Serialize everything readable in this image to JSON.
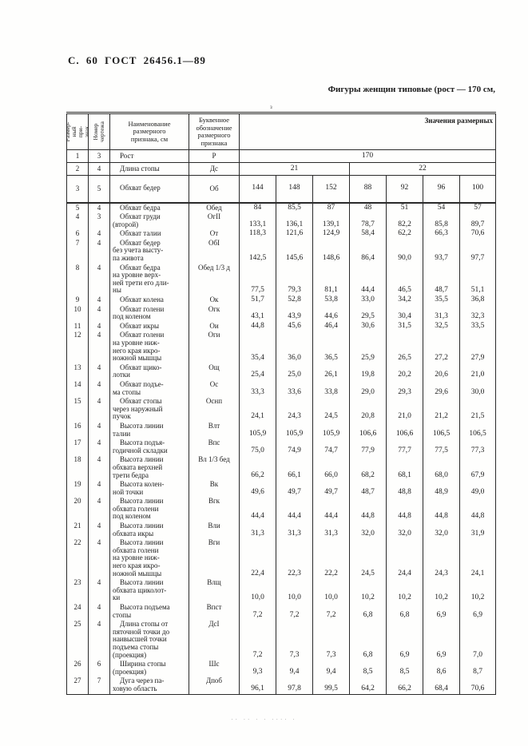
{
  "page": {
    "header": "С. 60 ГОСТ 26456.1—89",
    "caption": "Фигуры женщин типовые (рост — 170 см,",
    "top_artifact": "з",
    "footer_artifact": "·· ·· · · ···· ·"
  },
  "table": {
    "headers": {
      "col1": "Размер-\nный при-\nзнак",
      "col2": "Номер\nчертежа",
      "col3": "Наименование\nразмерного\nпризнака, см",
      "col4": "Буквенное\nобозначение\nразмерного\nпризнака",
      "values": "Значения размерных"
    },
    "group_rows": [
      {
        "c1": "1",
        "c2": "3",
        "name": "Рост",
        "letter": "Р",
        "spans": [
          {
            "label": "170",
            "cols": 7
          }
        ]
      },
      {
        "c1": "2",
        "c2": "4",
        "name": "Длина стопы",
        "letter": "Дс",
        "spans": [
          {
            "label": "21",
            "cols": 3
          },
          {
            "label": "22",
            "cols": 4
          }
        ]
      },
      {
        "c1": "3",
        "c2": "5",
        "name": "Обхват бедер",
        "letter": "Об",
        "spans": [
          {
            "label": "144",
            "cols": 1
          },
          {
            "label": "148",
            "cols": 1
          },
          {
            "label": "152",
            "cols": 1
          },
          {
            "label": "88",
            "cols": 1
          },
          {
            "label": "92",
            "cols": 1
          },
          {
            "label": "96",
            "cols": 1
          },
          {
            "label": "100",
            "cols": 1
          }
        ]
      }
    ],
    "rows": [
      {
        "c1": "5",
        "c2": "4",
        "name": "Обхват бедра",
        "letter": "Обед",
        "values": [
          "84",
          "85,5",
          "87",
          "48",
          "51",
          "54",
          "57"
        ]
      },
      {
        "c1": "4",
        "c2": "3",
        "name": "Обхват груди\n(второй)",
        "letter": "ОгII",
        "values": [
          "133,1",
          "136,1",
          "139,1",
          "78,7",
          "82,2",
          "85,8",
          "89,7"
        ]
      },
      {
        "c1": "6",
        "c2": "4",
        "name": "Обхват талии",
        "letter": "От",
        "values": [
          "118,3",
          "121,6",
          "124,9",
          "58,4",
          "62,2",
          "66,3",
          "70,6"
        ]
      },
      {
        "c1": "7",
        "c2": "4",
        "name": "Обхват бедер\nбез учета высту-\nпа живота",
        "letter": "ОбI",
        "values": [
          "142,5",
          "145,6",
          "148,6",
          "86,4",
          "90,0",
          "93,7",
          "97,7"
        ]
      },
      {
        "c1": "8",
        "c2": "4",
        "name": "Обхват бедра\nна уровне верх-\nней трети его дли-\nны",
        "letter": "Обед 1/3 д",
        "values": [
          "77,5",
          "79,3",
          "81,1",
          "44,4",
          "46,5",
          "48,7",
          "51,1"
        ]
      },
      {
        "c1": "9",
        "c2": "4",
        "name": "Обхват колена",
        "letter": "Ок",
        "values": [
          "51,7",
          "52,8",
          "53,8",
          "33,0",
          "34,2",
          "35,5",
          "36,8"
        ]
      },
      {
        "c1": "10",
        "c2": "4",
        "name": "Обхват голени\nпод коленом",
        "letter": "Огк",
        "values": [
          "43,1",
          "43,9",
          "44,6",
          "29,5",
          "30,4",
          "31,3",
          "32,3"
        ]
      },
      {
        "c1": "11",
        "c2": "4",
        "name": "Обхват икры",
        "letter": "Ои",
        "values": [
          "44,8",
          "45,6",
          "46,4",
          "30,6",
          "31,5",
          "32,5",
          "33,5"
        ]
      },
      {
        "c1": "12",
        "c2": "4",
        "name": "Обхват голени\nна уровне ниж-\nнего края икро-\nножной мышцы",
        "letter": "Оги",
        "values": [
          "35,4",
          "36,0",
          "36,5",
          "25,9",
          "26,5",
          "27,2",
          "27,9"
        ]
      },
      {
        "c1": "13",
        "c2": "4",
        "name": "Обхват щико-\nлотки",
        "letter": "Ощ",
        "values": [
          "25,4",
          "25,0",
          "26,1",
          "19,8",
          "20,2",
          "20,6",
          "21,0"
        ]
      },
      {
        "c1": "14",
        "c2": "4",
        "name": "Обхват подъе-\nма стопы",
        "letter": "Ос",
        "values": [
          "33,3",
          "33,6",
          "33,8",
          "29,0",
          "29,3",
          "29,6",
          "30,0"
        ]
      },
      {
        "c1": "15",
        "c2": "4",
        "name": "Обхват стопы\nчерез наружный\nпучок",
        "letter": "Оснп",
        "values": [
          "24,1",
          "24,3",
          "24,5",
          "20,8",
          "21,0",
          "21,2",
          "21,5"
        ]
      },
      {
        "c1": "16",
        "c2": "4",
        "name": "Высота линии\nталии",
        "letter": "Влт",
        "values": [
          "105,9",
          "105,9",
          "105,9",
          "106,6",
          "106,6",
          "106,5",
          "106,5"
        ]
      },
      {
        "c1": "17",
        "c2": "4",
        "name": "Высота подъя-\nгодичной складки",
        "letter": "Впс",
        "values": [
          "75,0",
          "74,9",
          "74,7",
          "77,9",
          "77,7",
          "77,5",
          "77,3"
        ]
      },
      {
        "c1": "18",
        "c2": "4",
        "name": "Высота линии\nобхвата верхней\nтрети бедра",
        "letter": "Вл 1/3 бед",
        "values": [
          "66,2",
          "66,1",
          "66,0",
          "68,2",
          "68,1",
          "68,0",
          "67,9"
        ]
      },
      {
        "c1": "19",
        "c2": "4",
        "name": "Высота колен-\nной точки",
        "letter": "Вк",
        "values": [
          "49,6",
          "49,7",
          "49,7",
          "48,7",
          "48,8",
          "48,9",
          "49,0"
        ]
      },
      {
        "c1": "20",
        "c2": "4",
        "name": "Высота линии\nобхвата голени\nпод коленом",
        "letter": "Вгк",
        "values": [
          "44,4",
          "44,4",
          "44,4",
          "44,8",
          "44,8",
          "44,8",
          "44,8"
        ]
      },
      {
        "c1": "21",
        "c2": "4",
        "name": "Высота линии\nобхвата икры",
        "letter": "Вли",
        "values": [
          "31,3",
          "31,3",
          "31,3",
          "32,0",
          "32,0",
          "32,0",
          "31,9"
        ]
      },
      {
        "c1": "22",
        "c2": "4",
        "name": "Высота линии\nобхвата голени\nна уровне ниж-\nнего края икро-\nножной мышцы",
        "letter": "Вги",
        "values": [
          "22,4",
          "22,3",
          "22,2",
          "24,5",
          "24,4",
          "24,3",
          "24,1"
        ]
      },
      {
        "c1": "23",
        "c2": "4",
        "name": "Высота линии\nобхвата щиколот-\nки",
        "letter": "Влщ",
        "values": [
          "10,0",
          "10,0",
          "10,0",
          "10,2",
          "10,2",
          "10,2",
          "10,2"
        ]
      },
      {
        "c1": "24",
        "c2": "4",
        "name": "Высота подъема\nстопы",
        "letter": "Впст",
        "values": [
          "7,2",
          "7,2",
          "7,2",
          "6,8",
          "6,8",
          "6,9",
          "6,9"
        ]
      },
      {
        "c1": "25",
        "c2": "4",
        "name": "Длина стопы от\nпяточной точки до\nнаивысшей точки\nподъема стопы\n(проекция)",
        "letter": "ДсI",
        "values": [
          "7,2",
          "7,3",
          "7,3",
          "6,8",
          "6,9",
          "6,9",
          "7,0"
        ]
      },
      {
        "c1": "26",
        "c2": "6",
        "name": "Ширина стопы\n(проекция)",
        "letter": "Шс",
        "values": [
          "9,3",
          "9,4",
          "9,4",
          "8,5",
          "8,5",
          "8,6",
          "8,7"
        ]
      },
      {
        "c1": "27",
        "c2": "7",
        "name": "Дуга через па-\nховую область",
        "letter": "Дпоб",
        "values": [
          "96,1",
          "97,8",
          "99,5",
          "64,2",
          "66,2",
          "68,4",
          "70,6"
        ]
      }
    ]
  }
}
